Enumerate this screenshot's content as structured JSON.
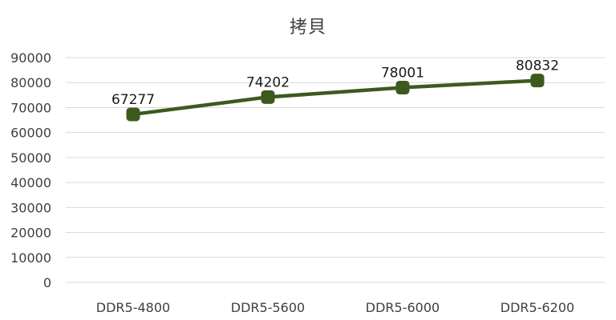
{
  "chart_data": {
    "type": "line",
    "title": "拷貝",
    "xlabel": "",
    "ylabel": "",
    "categories": [
      "DDR5-4800",
      "DDR5-5600",
      "DDR5-6000",
      "DDR5-6200"
    ],
    "series": [
      {
        "values": [
          67277,
          74202,
          78001,
          80832
        ]
      }
    ],
    "ylim": [
      0,
      90000
    ],
    "y_ticks": [
      "0",
      "10000",
      "20000",
      "30000",
      "40000",
      "50000",
      "60000",
      "70000",
      "80000",
      "90000"
    ],
    "data_labels": [
      "67277",
      "74202",
      "78001",
      "80832"
    ],
    "grid": true,
    "legend": "none",
    "line_color": "#3d5a1e",
    "marker_color": "#3d5a1e",
    "grid_color": "#d9d9d9"
  }
}
